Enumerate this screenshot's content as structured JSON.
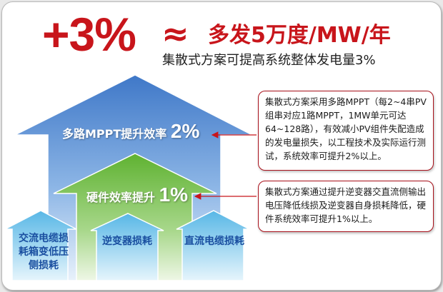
{
  "headline": {
    "percent": "+3%",
    "approx_symbol": "≈",
    "text": "多发5万度/MW/年"
  },
  "subtitle": "集散式方案可提高系统整体发电量3%",
  "arrows": {
    "top": {
      "text": "多路MPPT提升效率",
      "percent": "2%"
    },
    "middle": {
      "text": "硬件效率提升",
      "percent": "1%"
    },
    "bottom": [
      {
        "text": "交流电缆损耗箱变低压侧损耗"
      },
      {
        "text": "逆变器损耗"
      },
      {
        "text": "直流电缆损耗"
      }
    ]
  },
  "notes": [
    {
      "text": "集散式方案采用多路MPPT（每2~4串PV组串对应1路MPPT，1MW单元可达64~128路），有效减小PV组件失配造成的发电量损失，以工程技术及实际运行测试，系统效率可提升2%以上。"
    },
    {
      "text": "集散式方案通过提升逆变器交直流侧输出电压降低线损及逆变器自身损耗降低，硬件系统效率可提升1%以上。"
    }
  ],
  "colors": {
    "accent_red": "#c8151b",
    "blue_arrow": "#4b86cf",
    "green_arrow": "#6dbb3c",
    "small_arrow": "#8fd0ee"
  }
}
